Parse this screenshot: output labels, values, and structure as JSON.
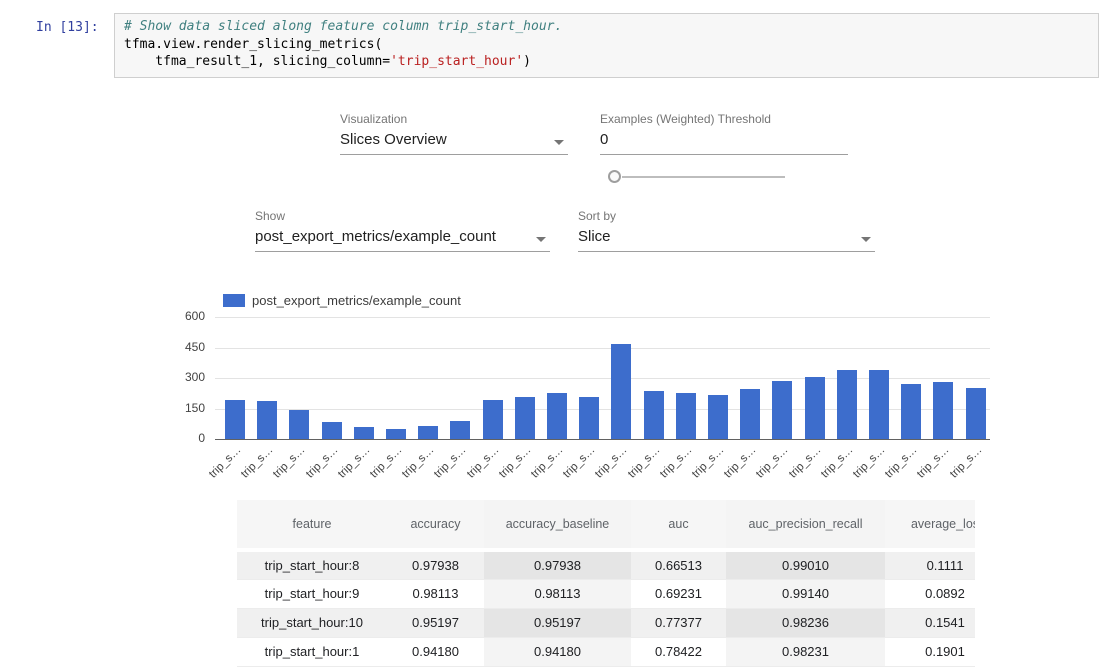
{
  "notebook": {
    "prompt": "In [13]:",
    "code": {
      "line1": "# Show data sliced along feature column trip_start_hour.",
      "line2": "tfma.view.render_slicing_metrics(",
      "line3_pre": "    tfma_result_1, slicing_column=",
      "line3_string": "'trip_start_hour'",
      "line3_close": ")"
    }
  },
  "controls": {
    "visualization": {
      "label": "Visualization",
      "value": "Slices Overview"
    },
    "threshold": {
      "label": "Examples (Weighted) Threshold",
      "value": "0"
    },
    "show": {
      "label": "Show",
      "value": "post_export_metrics/example_count"
    },
    "sort": {
      "label": "Sort by",
      "value": "Slice"
    }
  },
  "chart_data": {
    "type": "bar",
    "title": "",
    "legend_position": "top",
    "color": "#3d6dcc",
    "grid": true,
    "ylim": [
      0,
      600
    ],
    "yticks": [
      0,
      150,
      300,
      450,
      600
    ],
    "categories": [
      "trip_s…",
      "trip_s…",
      "trip_s…",
      "trip_s…",
      "trip_s…",
      "trip_s…",
      "trip_s…",
      "trip_s…",
      "trip_s…",
      "trip_s…",
      "trip_s…",
      "trip_s…",
      "trip_s…",
      "trip_s…",
      "trip_s…",
      "trip_s…",
      "trip_s…",
      "trip_s…",
      "trip_s…",
      "trip_s…",
      "trip_s…",
      "trip_s…",
      "trip_s…",
      "trip_s…"
    ],
    "series": [
      {
        "name": "post_export_metrics/example_count",
        "values": [
          190,
          188,
          145,
          85,
          60,
          47,
          65,
          90,
          190,
          205,
          225,
          205,
          465,
          235,
          228,
          218,
          245,
          283,
          305,
          338,
          338,
          270,
          278,
          250
        ]
      }
    ]
  },
  "table": {
    "headers": [
      "feature",
      "accuracy",
      "accuracy_baseline",
      "auc",
      "auc_precision_recall",
      "average_los"
    ],
    "rows": [
      [
        "trip_start_hour:8",
        "0.97938",
        "0.97938",
        "0.66513",
        "0.99010",
        "0.1111"
      ],
      [
        "trip_start_hour:9",
        "0.98113",
        "0.98113",
        "0.69231",
        "0.99140",
        "0.0892"
      ],
      [
        "trip_start_hour:10",
        "0.95197",
        "0.95197",
        "0.77377",
        "0.98236",
        "0.1541"
      ],
      [
        "trip_start_hour:1",
        "0.94180",
        "0.94180",
        "0.78422",
        "0.98231",
        "0.1901"
      ]
    ]
  }
}
